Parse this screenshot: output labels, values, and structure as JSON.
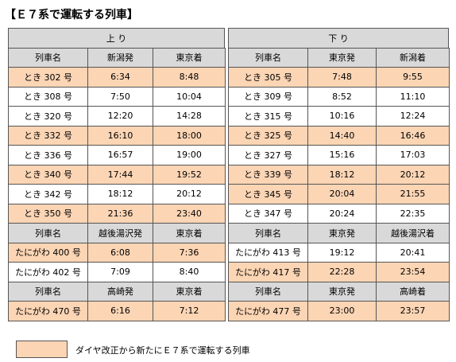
{
  "title": "【Ｅ７系で運転する列車】",
  "directions": [
    "上 り",
    "下 り"
  ],
  "sections": [
    {
      "up": {
        "headers": [
          "列車名",
          "新潟発",
          "東京着"
        ],
        "rows": [
          {
            "cells": [
              "とき 302 号",
              "6:34",
              "8:48"
            ],
            "highlight": true
          },
          {
            "cells": [
              "とき 308 号",
              "7:50",
              "10:04"
            ],
            "highlight": false
          },
          {
            "cells": [
              "とき 320 号",
              "12:20",
              "14:28"
            ],
            "highlight": false
          },
          {
            "cells": [
              "とき 332 号",
              "16:10",
              "18:00"
            ],
            "highlight": true
          },
          {
            "cells": [
              "とき 336 号",
              "16:57",
              "19:00"
            ],
            "highlight": false
          },
          {
            "cells": [
              "とき 340 号",
              "17:44",
              "19:52"
            ],
            "highlight": true
          },
          {
            "cells": [
              "とき 342 号",
              "18:12",
              "20:12"
            ],
            "highlight": false
          },
          {
            "cells": [
              "とき 350 号",
              "21:36",
              "23:40"
            ],
            "highlight": true
          }
        ]
      },
      "down": {
        "headers": [
          "列車名",
          "東京発",
          "新潟着"
        ],
        "rows": [
          {
            "cells": [
              "とき 305 号",
              "7:48",
              "9:55"
            ],
            "highlight": true
          },
          {
            "cells": [
              "とき 309 号",
              "8:52",
              "11:10"
            ],
            "highlight": false
          },
          {
            "cells": [
              "とき 315 号",
              "10:16",
              "12:24"
            ],
            "highlight": false
          },
          {
            "cells": [
              "とき 325 号",
              "14:40",
              "16:46"
            ],
            "highlight": true
          },
          {
            "cells": [
              "とき 327 号",
              "15:16",
              "17:03"
            ],
            "highlight": false
          },
          {
            "cells": [
              "とき 339 号",
              "18:12",
              "20:12"
            ],
            "highlight": true
          },
          {
            "cells": [
              "とき 345 号",
              "20:04",
              "21:55"
            ],
            "highlight": true
          },
          {
            "cells": [
              "とき 347 号",
              "20:24",
              "22:35"
            ],
            "highlight": false
          }
        ]
      }
    },
    {
      "up": {
        "headers": [
          "列車名",
          "越後湯沢発",
          "東京着"
        ],
        "rows": [
          {
            "cells": [
              "たにがわ 400 号",
              "6:08",
              "7:36"
            ],
            "highlight": true
          },
          {
            "cells": [
              "たにがわ 402 号",
              "7:09",
              "8:40"
            ],
            "highlight": false
          }
        ]
      },
      "down": {
        "headers": [
          "列車名",
          "東京発",
          "越後湯沢着"
        ],
        "rows": [
          {
            "cells": [
              "たにがわ 413 号",
              "19:12",
              "20:41"
            ],
            "highlight": false
          },
          {
            "cells": [
              "たにがわ 417 号",
              "22:28",
              "23:54"
            ],
            "highlight": true
          }
        ]
      }
    },
    {
      "up": {
        "headers": [
          "列車名",
          "高崎発",
          "東京着"
        ],
        "rows": [
          {
            "cells": [
              "たにがわ 470 号",
              "6:16",
              "7:12"
            ],
            "highlight": true
          }
        ]
      },
      "down": {
        "headers": [
          "列車名",
          "東京発",
          "高崎着"
        ],
        "rows": [
          {
            "cells": [
              "たにがわ 477 号",
              "23:00",
              "23:57"
            ],
            "highlight": true
          }
        ]
      }
    }
  ],
  "legend": "ダイヤ改正から新たにＥ７系で運転する列車"
}
